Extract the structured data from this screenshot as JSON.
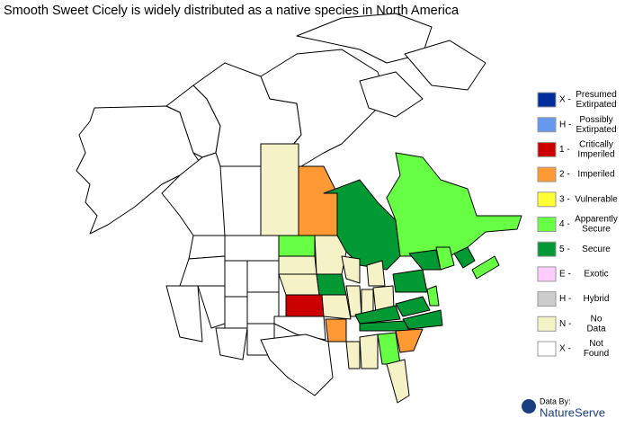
{
  "title": "Smooth Sweet Cicely is widely distributed as a native species in North America",
  "legend": [
    {
      "code": "X -",
      "label": [
        "Presumed",
        "Extirpated"
      ],
      "color": "#002d9b"
    },
    {
      "code": "H -",
      "label": [
        "Possibly",
        "Extirpated"
      ],
      "color": "#6699ee"
    },
    {
      "code": "1 -",
      "label": [
        "Critically",
        "Imperiled"
      ],
      "color": "#cc0000"
    },
    {
      "code": "2 -",
      "label": [
        "Imperiled"
      ],
      "color": "#ff9933"
    },
    {
      "code": "3 -",
      "label": [
        "Vulnerable"
      ],
      "color": "#ffff33"
    },
    {
      "code": "4 -",
      "label": [
        "Apparently",
        "Secure"
      ],
      "color": "#66ff44"
    },
    {
      "code": "5 -",
      "label": [
        "Secure"
      ],
      "color": "#009933"
    },
    {
      "code": "E -",
      "label": [
        "Exotic"
      ],
      "color": "#ffccff"
    },
    {
      "code": "H -",
      "label": [
        "Hybrid"
      ],
      "color": "#cccccc"
    },
    {
      "code": "N -",
      "label": [
        "No",
        "Data"
      ],
      "color": "#f5f2c8"
    },
    {
      "code": "X -",
      "label": [
        "Not",
        "Found"
      ],
      "color": "#ffffff"
    }
  ],
  "credit": {
    "prefix": "Data By:",
    "name": "NatureServe"
  }
}
